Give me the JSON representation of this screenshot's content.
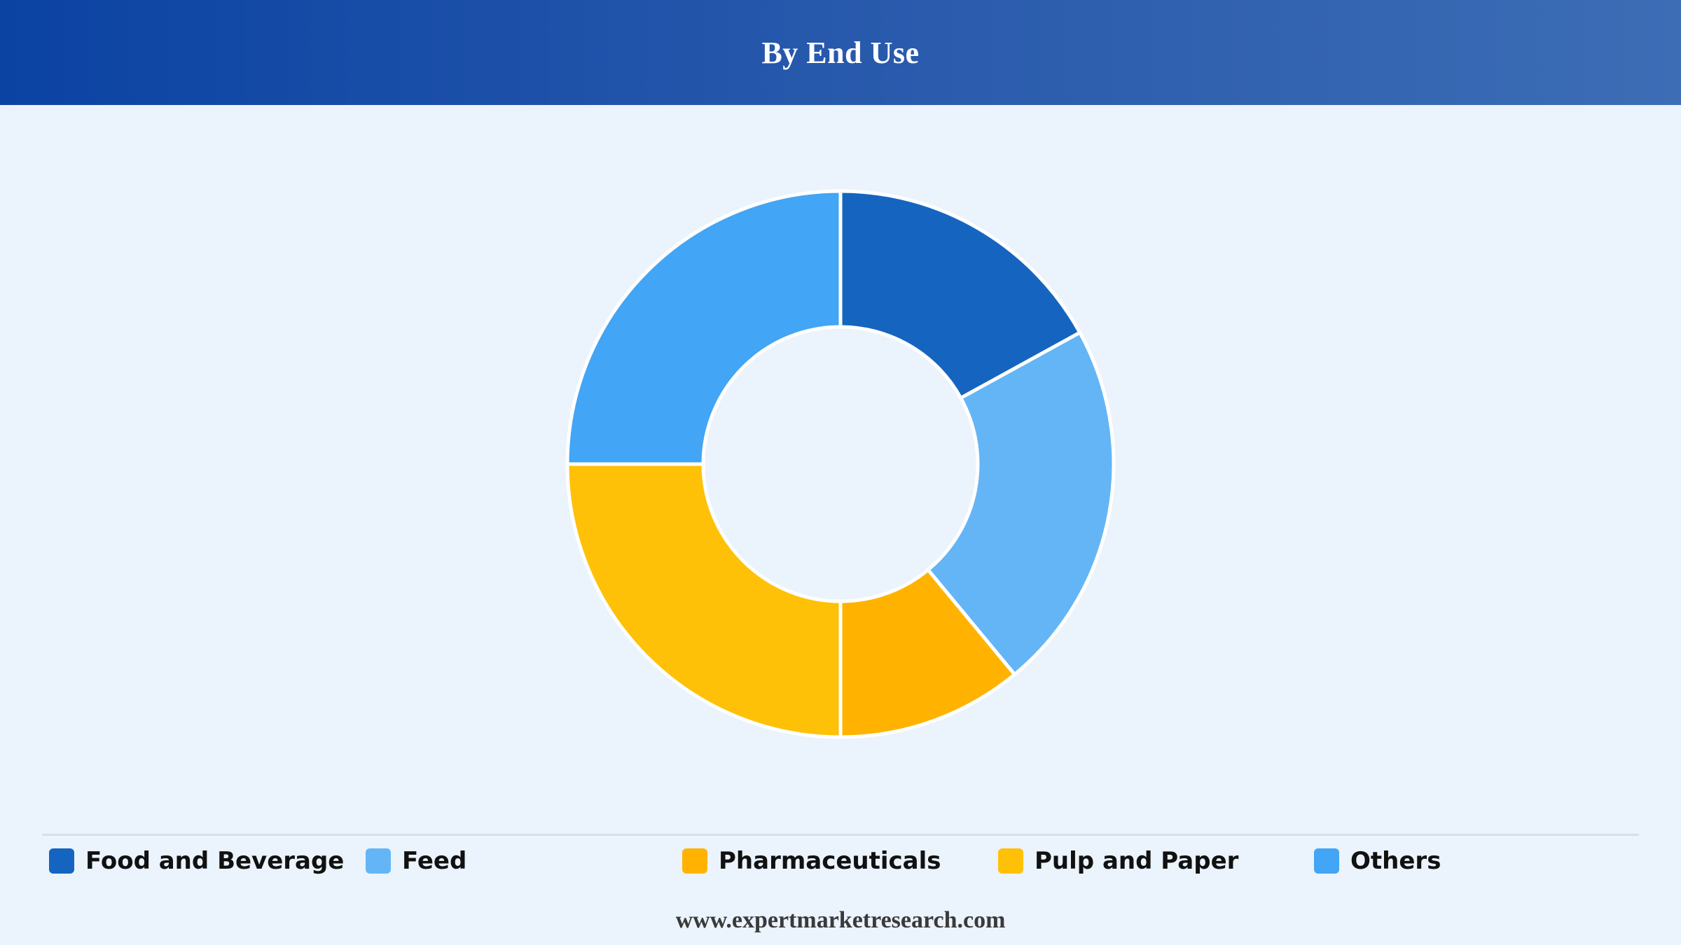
{
  "header": {
    "title": "By End Use"
  },
  "chart_data": {
    "type": "pie",
    "variant": "donut",
    "title": "By End Use",
    "categories": [
      "Food and Beverage",
      "Feed",
      "Pharmaceuticals",
      "Pulp and Paper",
      "Others"
    ],
    "values": [
      17,
      22,
      11,
      25,
      25
    ],
    "slice_order_clockwise_from_top": [
      "Food and Beverage",
      "Feed",
      "Pharmaceuticals",
      "Pulp and Paper",
      "Others"
    ],
    "colors": [
      "#1565c0",
      "#64b5f6",
      "#ffb300",
      "#ffc107",
      "#42a5f5"
    ],
    "legend_position": "bottom"
  },
  "legend": {
    "items": [
      {
        "label": "Food and Beverage",
        "color": "#1565c0"
      },
      {
        "label": "Feed",
        "color": "#64b5f6"
      },
      {
        "label": "Pharmaceuticals",
        "color": "#ffb300"
      },
      {
        "label": "Pulp and Paper",
        "color": "#ffc107"
      },
      {
        "label": "Others",
        "color": "#42a5f5"
      }
    ]
  },
  "footer": {
    "website": "www.expertmarketresearch.com"
  }
}
